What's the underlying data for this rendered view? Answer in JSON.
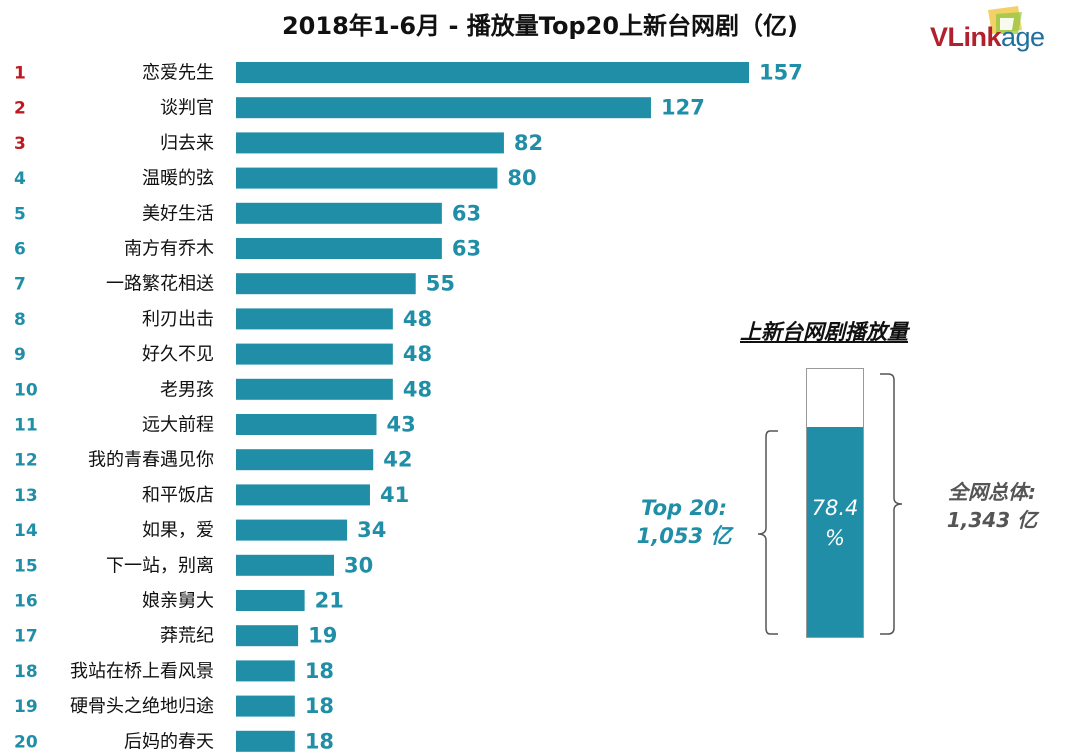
{
  "title": "2018年1-6月 - 播放量Top20上新台网剧（亿)",
  "logo": {
    "part1": "VLink",
    "part2": "age"
  },
  "colors": {
    "bar": "#1f8ea6",
    "rank_top3": "#c0181f",
    "rank_other": "#1f8ea6",
    "value": "#1f8ea6"
  },
  "chart_data": {
    "type": "bar",
    "orientation": "horizontal",
    "title": "2018年1-6月 - 播放量Top20上新台网剧（亿)",
    "ranks": [
      "1",
      "2",
      "3",
      "4",
      "5",
      "6",
      "7",
      "8",
      "9",
      "10",
      "11",
      "12",
      "13",
      "14",
      "15",
      "16",
      "17",
      "18",
      "19",
      "20"
    ],
    "categories": [
      "恋爱先生",
      "谈判官",
      "归去来",
      "温暖的弦",
      "美好生活",
      "南方有乔木",
      "一路繁花相送",
      "利刃出击",
      "好久不见",
      "老男孩",
      "远大前程",
      "我的青春遇见你",
      "和平饭店",
      "如果，爱",
      "下一站，别离",
      "娘亲舅大",
      "莽荒纪",
      "我站在桥上看风景",
      "硬骨头之绝地归途",
      "后妈的春天"
    ],
    "values": [
      157,
      127,
      82,
      80,
      63,
      63,
      55,
      48,
      48,
      48,
      43,
      42,
      41,
      34,
      30,
      21,
      19,
      18,
      18,
      18
    ],
    "xlabel": "",
    "ylabel": ""
  },
  "share": {
    "title": "上新台网剧播放量",
    "fraction": 0.784,
    "pct_line1": "78.4",
    "pct_line2": "%",
    "top_line1": "Top 20:",
    "top_line2": "1,053 亿",
    "total_line1": "全网总体:",
    "total_line2": "1,343 亿"
  }
}
